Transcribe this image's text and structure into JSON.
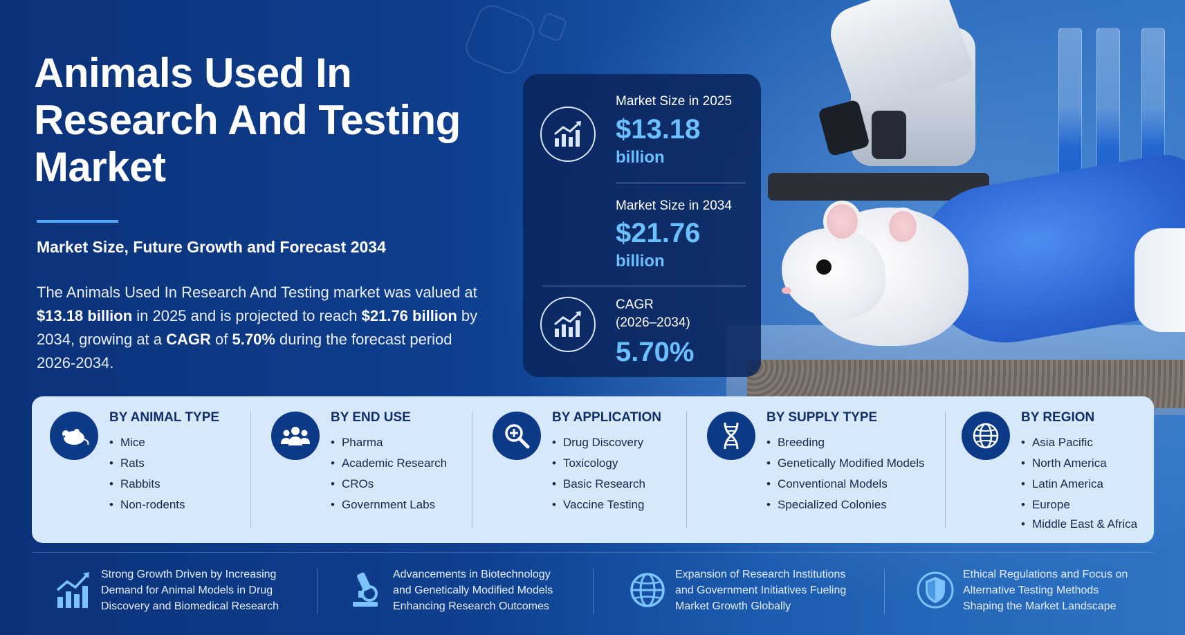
{
  "header": {
    "title": "Animals Used In Research And Testing Market",
    "subtitle": "Market Size, Future Growth and Forecast 2034"
  },
  "summary": {
    "part1": "The Animals Used In Research And Testing market was valued at ",
    "value_2025": "$13.18 billion",
    "part2": " in 2025 and is projected to reach ",
    "value_2034": "$21.76 billion",
    "part3": " by 2034, growing at a ",
    "cagr_word": "CAGR",
    "part4": " of ",
    "cagr_value": "5.70%",
    "part5": " during the forecast period 2026-2034."
  },
  "stats": {
    "size_2025": {
      "label": "Market Size in 2025",
      "value": "$13.18",
      "unit": "billion",
      "icon": "chart-up-icon"
    },
    "size_2034": {
      "label": "Market Size in 2034",
      "value": "$21.76",
      "unit": "billion"
    },
    "cagr": {
      "label_line1": "CAGR",
      "label_line2": "(2026–2034)",
      "value": "5.70%",
      "icon": "chart-up-icon"
    }
  },
  "segments": [
    {
      "title": "BY ANIMAL TYPE",
      "icon": "mouse-icon",
      "items": [
        "Mice",
        "Rats",
        "Rabbits",
        "Non-rodents"
      ]
    },
    {
      "title": "BY END USE",
      "icon": "people-icon",
      "items": [
        "Pharma",
        "Academic Research",
        "CROs",
        "Government Labs"
      ]
    },
    {
      "title": "BY APPLICATION",
      "icon": "magnifier-plus-icon",
      "items": [
        "Drug Discovery",
        "Toxicology",
        "Basic Research",
        "Vaccine Testing"
      ]
    },
    {
      "title": "BY SUPPLY TYPE",
      "icon": "dna-icon",
      "items": [
        "Breeding",
        "Genetically Modified Models",
        "Conventional Models",
        "Specialized Colonies"
      ]
    },
    {
      "title": "BY REGION",
      "icon": "globe-icon",
      "items": [
        "Asia Pacific",
        "North America",
        "Latin America",
        "Europe",
        "Middle East & Africa"
      ]
    }
  ],
  "drivers": [
    {
      "icon": "bar-chart-up-icon",
      "lines": [
        "Strong Growth Driven by Increasing",
        "Demand for Animal Models in Drug",
        "Discovery and Biomedical Research"
      ]
    },
    {
      "icon": "microscope-icon",
      "lines": [
        "Advancements in Biotechnology",
        "and Genetically Modified Models",
        "Enhancing Research Outcomes"
      ]
    },
    {
      "icon": "globe-icon",
      "lines": [
        "Expansion of Research Institutions",
        "and Government Initiatives Fueling",
        "Market Growth Globally"
      ]
    },
    {
      "icon": "shield-icon",
      "lines": [
        "Ethical Regulations and Focus on",
        "Alternative Testing Methods",
        "Shaping the Market Landscape"
      ]
    }
  ],
  "colors": {
    "background": "#0d3a86",
    "accent": "#6cc0ff",
    "panel": "#d8e8fb",
    "heading_dark": "#0f2f6a"
  }
}
